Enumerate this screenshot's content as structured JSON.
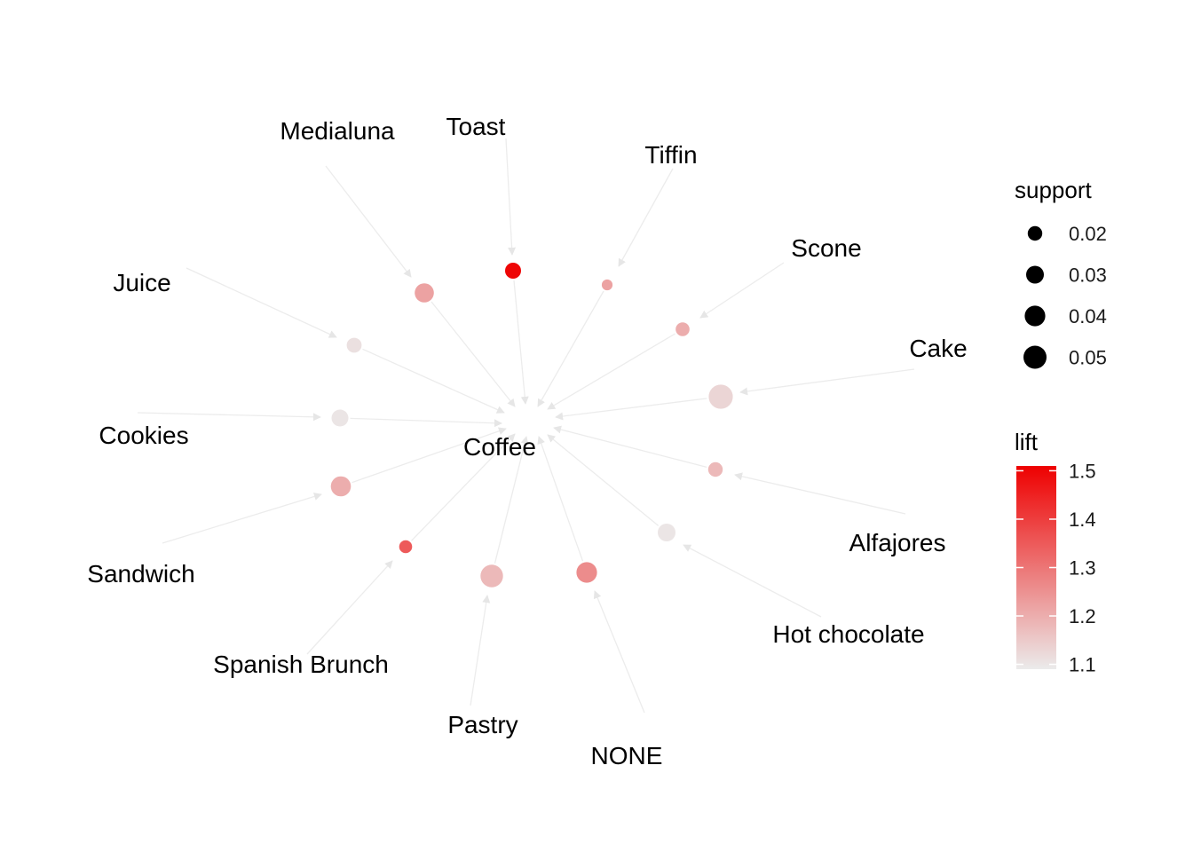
{
  "graph": {
    "center_label": "Coffee",
    "rules": [
      {
        "item": "Toast",
        "support": 0.024,
        "lift": 1.5
      },
      {
        "item": "Tiffin",
        "support": 0.011,
        "lift": 1.22
      },
      {
        "item": "Scone",
        "support": 0.018,
        "lift": 1.2
      },
      {
        "item": "Cake",
        "support": 0.055,
        "lift": 1.13
      },
      {
        "item": "Alfajores",
        "support": 0.02,
        "lift": 1.18
      },
      {
        "item": "Hot chocolate",
        "support": 0.03,
        "lift": 1.1
      },
      {
        "item": "NONE",
        "support": 0.04,
        "lift": 1.26
      },
      {
        "item": "Pastry",
        "support": 0.048,
        "lift": 1.18
      },
      {
        "item": "Spanish Brunch",
        "support": 0.016,
        "lift": 1.35
      },
      {
        "item": "Sandwich",
        "support": 0.038,
        "lift": 1.2
      },
      {
        "item": "Cookies",
        "support": 0.027,
        "lift": 1.1
      },
      {
        "item": "Juice",
        "support": 0.021,
        "lift": 1.11
      },
      {
        "item": "Medialuna",
        "support": 0.035,
        "lift": 1.22
      }
    ]
  },
  "legend": {
    "support_title": "support",
    "support_items": [
      {
        "label": "0.02",
        "value": 0.02
      },
      {
        "label": "0.03",
        "value": 0.03
      },
      {
        "label": "0.04",
        "value": 0.04
      },
      {
        "label": "0.05",
        "value": 0.05
      }
    ],
    "lift_title": "lift",
    "lift_ticks": [
      {
        "label": "1.5",
        "value": 1.5
      },
      {
        "label": "1.4",
        "value": 1.4
      },
      {
        "label": "1.3",
        "value": 1.3
      },
      {
        "label": "1.2",
        "value": 1.2
      },
      {
        "label": "1.1",
        "value": 1.1
      }
    ],
    "lift_range": [
      1.09,
      1.51
    ]
  },
  "colors": {
    "low": "#ebebeb",
    "high": "#ee0000",
    "edge": "#ececec",
    "support_marker": "#000000"
  }
}
